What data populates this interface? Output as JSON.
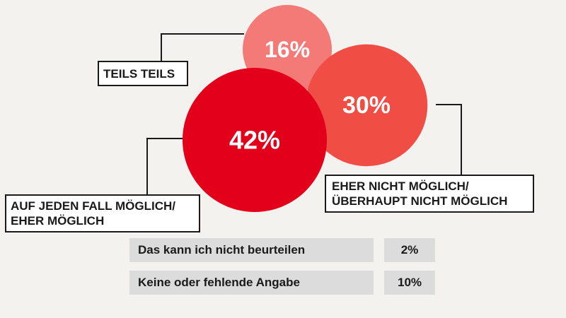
{
  "chart_data": {
    "type": "bubble",
    "series": [
      {
        "label_lines": [
          "TEILS TEILS"
        ],
        "value": 16,
        "display": "16%",
        "color": "#f47a78"
      },
      {
        "label_lines": [
          "EHER NICHT MÖGLICH/",
          "ÜBERHAUPT NICHT MÖGLICH"
        ],
        "value": 30,
        "display": "30%",
        "color": "#f04d45"
      },
      {
        "label_lines": [
          "AUF JEDEN FALL MÖGLICH/",
          "EHER MÖGLICH"
        ],
        "value": 42,
        "display": "42%",
        "color": "#e2001a"
      }
    ],
    "other": [
      {
        "label": "Das kann ich nicht beurteilen",
        "display": "2%",
        "value": 2
      },
      {
        "label": "Keine oder fehlende Angabe",
        "display": "10%",
        "value": 10
      }
    ]
  }
}
